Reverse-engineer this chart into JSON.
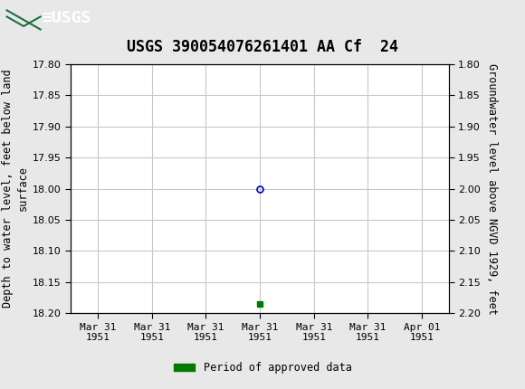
{
  "title": "USGS 390054076261401 AA Cf  24",
  "header_color": "#1a7040",
  "left_ylabel": "Depth to water level, feet below land\nsurface",
  "right_ylabel": "Groundwater level above NGVD 1929, feet",
  "ylim_left": [
    17.8,
    18.2
  ],
  "ylim_right": [
    2.2,
    1.8
  ],
  "yticks_left": [
    17.8,
    17.85,
    17.9,
    17.95,
    18.0,
    18.05,
    18.1,
    18.15,
    18.2
  ],
  "yticks_right": [
    2.2,
    2.15,
    2.1,
    2.05,
    2.0,
    1.95,
    1.9,
    1.85,
    1.8
  ],
  "ytick_labels_right": [
    "2.20",
    "2.15",
    "2.10",
    "2.05",
    "2.00",
    "1.95",
    "1.90",
    "1.85",
    "1.80"
  ],
  "data_point_x": 3,
  "data_point_y": 18.0,
  "data_point_color": "#0000cc",
  "green_square_x": 3,
  "green_square_y": 18.185,
  "green_color": "#007a00",
  "legend_label": "Period of approved data",
  "background_color": "#e8e8e8",
  "plot_bg_color": "#ffffff",
  "grid_color": "#c8c8c8",
  "xlim": [
    -0.5,
    6.5
  ],
  "xtick_positions": [
    0,
    1,
    2,
    3,
    4,
    5,
    6
  ],
  "xtick_labels": [
    "Mar 31\n1951",
    "Mar 31\n1951",
    "Mar 31\n1951",
    "Mar 31\n1951",
    "Mar 31\n1951",
    "Mar 31\n1951",
    "Apr 01\n1951"
  ],
  "font_family": "DejaVu Sans Mono",
  "title_fontsize": 12,
  "label_fontsize": 8.5,
  "tick_fontsize": 8
}
